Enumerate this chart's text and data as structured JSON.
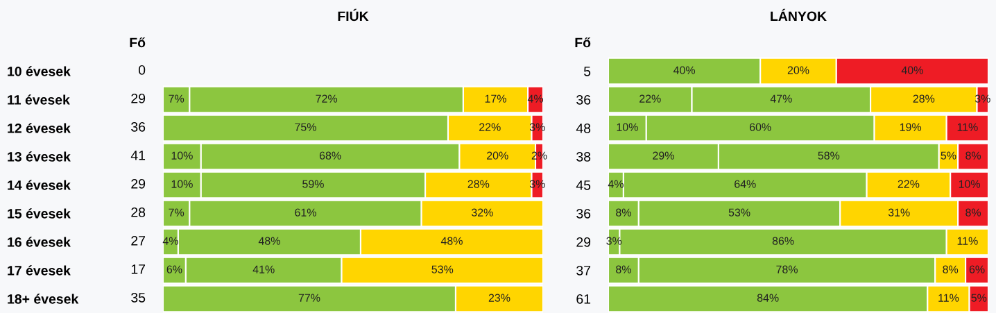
{
  "chart_data": [
    {
      "type": "bar",
      "orientation": "horizontal",
      "stacked": true,
      "title": "FIÚK",
      "legend": false,
      "grid": false,
      "categories": [
        "10 évesek",
        "11 évesek",
        "12 évesek",
        "13 évesek",
        "14 évesek",
        "15 évesek",
        "16 évesek",
        "17 évesek",
        "18+ évesek"
      ],
      "annotations": [
        "Fő",
        "0",
        "29",
        "36",
        "41",
        "29",
        "28",
        "27",
        "17",
        "35"
      ],
      "series": [
        {
          "color": "#8cc63f",
          "values": [
            null,
            7,
            null,
            10,
            10,
            7,
            4,
            6,
            null
          ],
          "value_labels": [
            null,
            "7%",
            null,
            "10%",
            "10%",
            "7%",
            "4%",
            "6%",
            null
          ]
        },
        {
          "color": "#8cc63f",
          "values": [
            null,
            72,
            75,
            68,
            59,
            61,
            48,
            41,
            77
          ],
          "value_labels": [
            null,
            "72%",
            "75%",
            "68%",
            "59%",
            "61%",
            "48%",
            "41%",
            "77%"
          ]
        },
        {
          "color": "#ffd500",
          "values": [
            null,
            17,
            22,
            20,
            28,
            32,
            48,
            53,
            23
          ],
          "value_labels": [
            null,
            "17%",
            "22%",
            "20%",
            "28%",
            "32%",
            "48%",
            "53%",
            "23%"
          ]
        },
        {
          "color": "#ee1c25",
          "values": [
            null,
            4,
            3,
            2,
            3,
            null,
            null,
            null,
            null
          ],
          "value_labels": [
            null,
            "4%",
            "3%",
            "2%",
            "3%",
            null,
            null,
            null,
            null
          ]
        }
      ]
    },
    {
      "type": "bar",
      "orientation": "horizontal",
      "stacked": true,
      "title": "LÁNYOK",
      "legend": false,
      "grid": false,
      "categories": [
        "5",
        "36",
        "48",
        "38",
        "45",
        "36",
        "29",
        "37",
        "61"
      ],
      "annotations": [
        "Fő"
      ],
      "series": [
        {
          "color": "#8cc63f",
          "values": [
            null,
            22,
            10,
            29,
            4,
            8,
            3,
            8,
            null
          ],
          "value_labels": [
            null,
            "22%",
            "10%",
            "29%",
            "4%",
            "8%",
            "3%",
            "8%",
            null
          ]
        },
        {
          "color": "#8cc63f",
          "values": [
            40,
            47,
            60,
            58,
            64,
            53,
            86,
            78,
            84
          ],
          "value_labels": [
            "40%",
            "47%",
            "60%",
            "58%",
            "64%",
            "53%",
            "86%",
            "78%",
            "84%"
          ]
        },
        {
          "color": "#ffd500",
          "values": [
            20,
            28,
            19,
            5,
            22,
            31,
            11,
            8,
            11
          ],
          "value_labels": [
            "20%",
            "28%",
            "19%",
            "5%",
            "22%",
            "31%",
            "11%",
            "8%",
            "11%"
          ]
        },
        {
          "color": "#ee1c25",
          "values": [
            40,
            3,
            11,
            8,
            10,
            8,
            null,
            6,
            5
          ],
          "value_labels": [
            "40%",
            "3%",
            "11%",
            "8%",
            "10%",
            "8%",
            null,
            "6%",
            "5%"
          ]
        }
      ]
    }
  ]
}
